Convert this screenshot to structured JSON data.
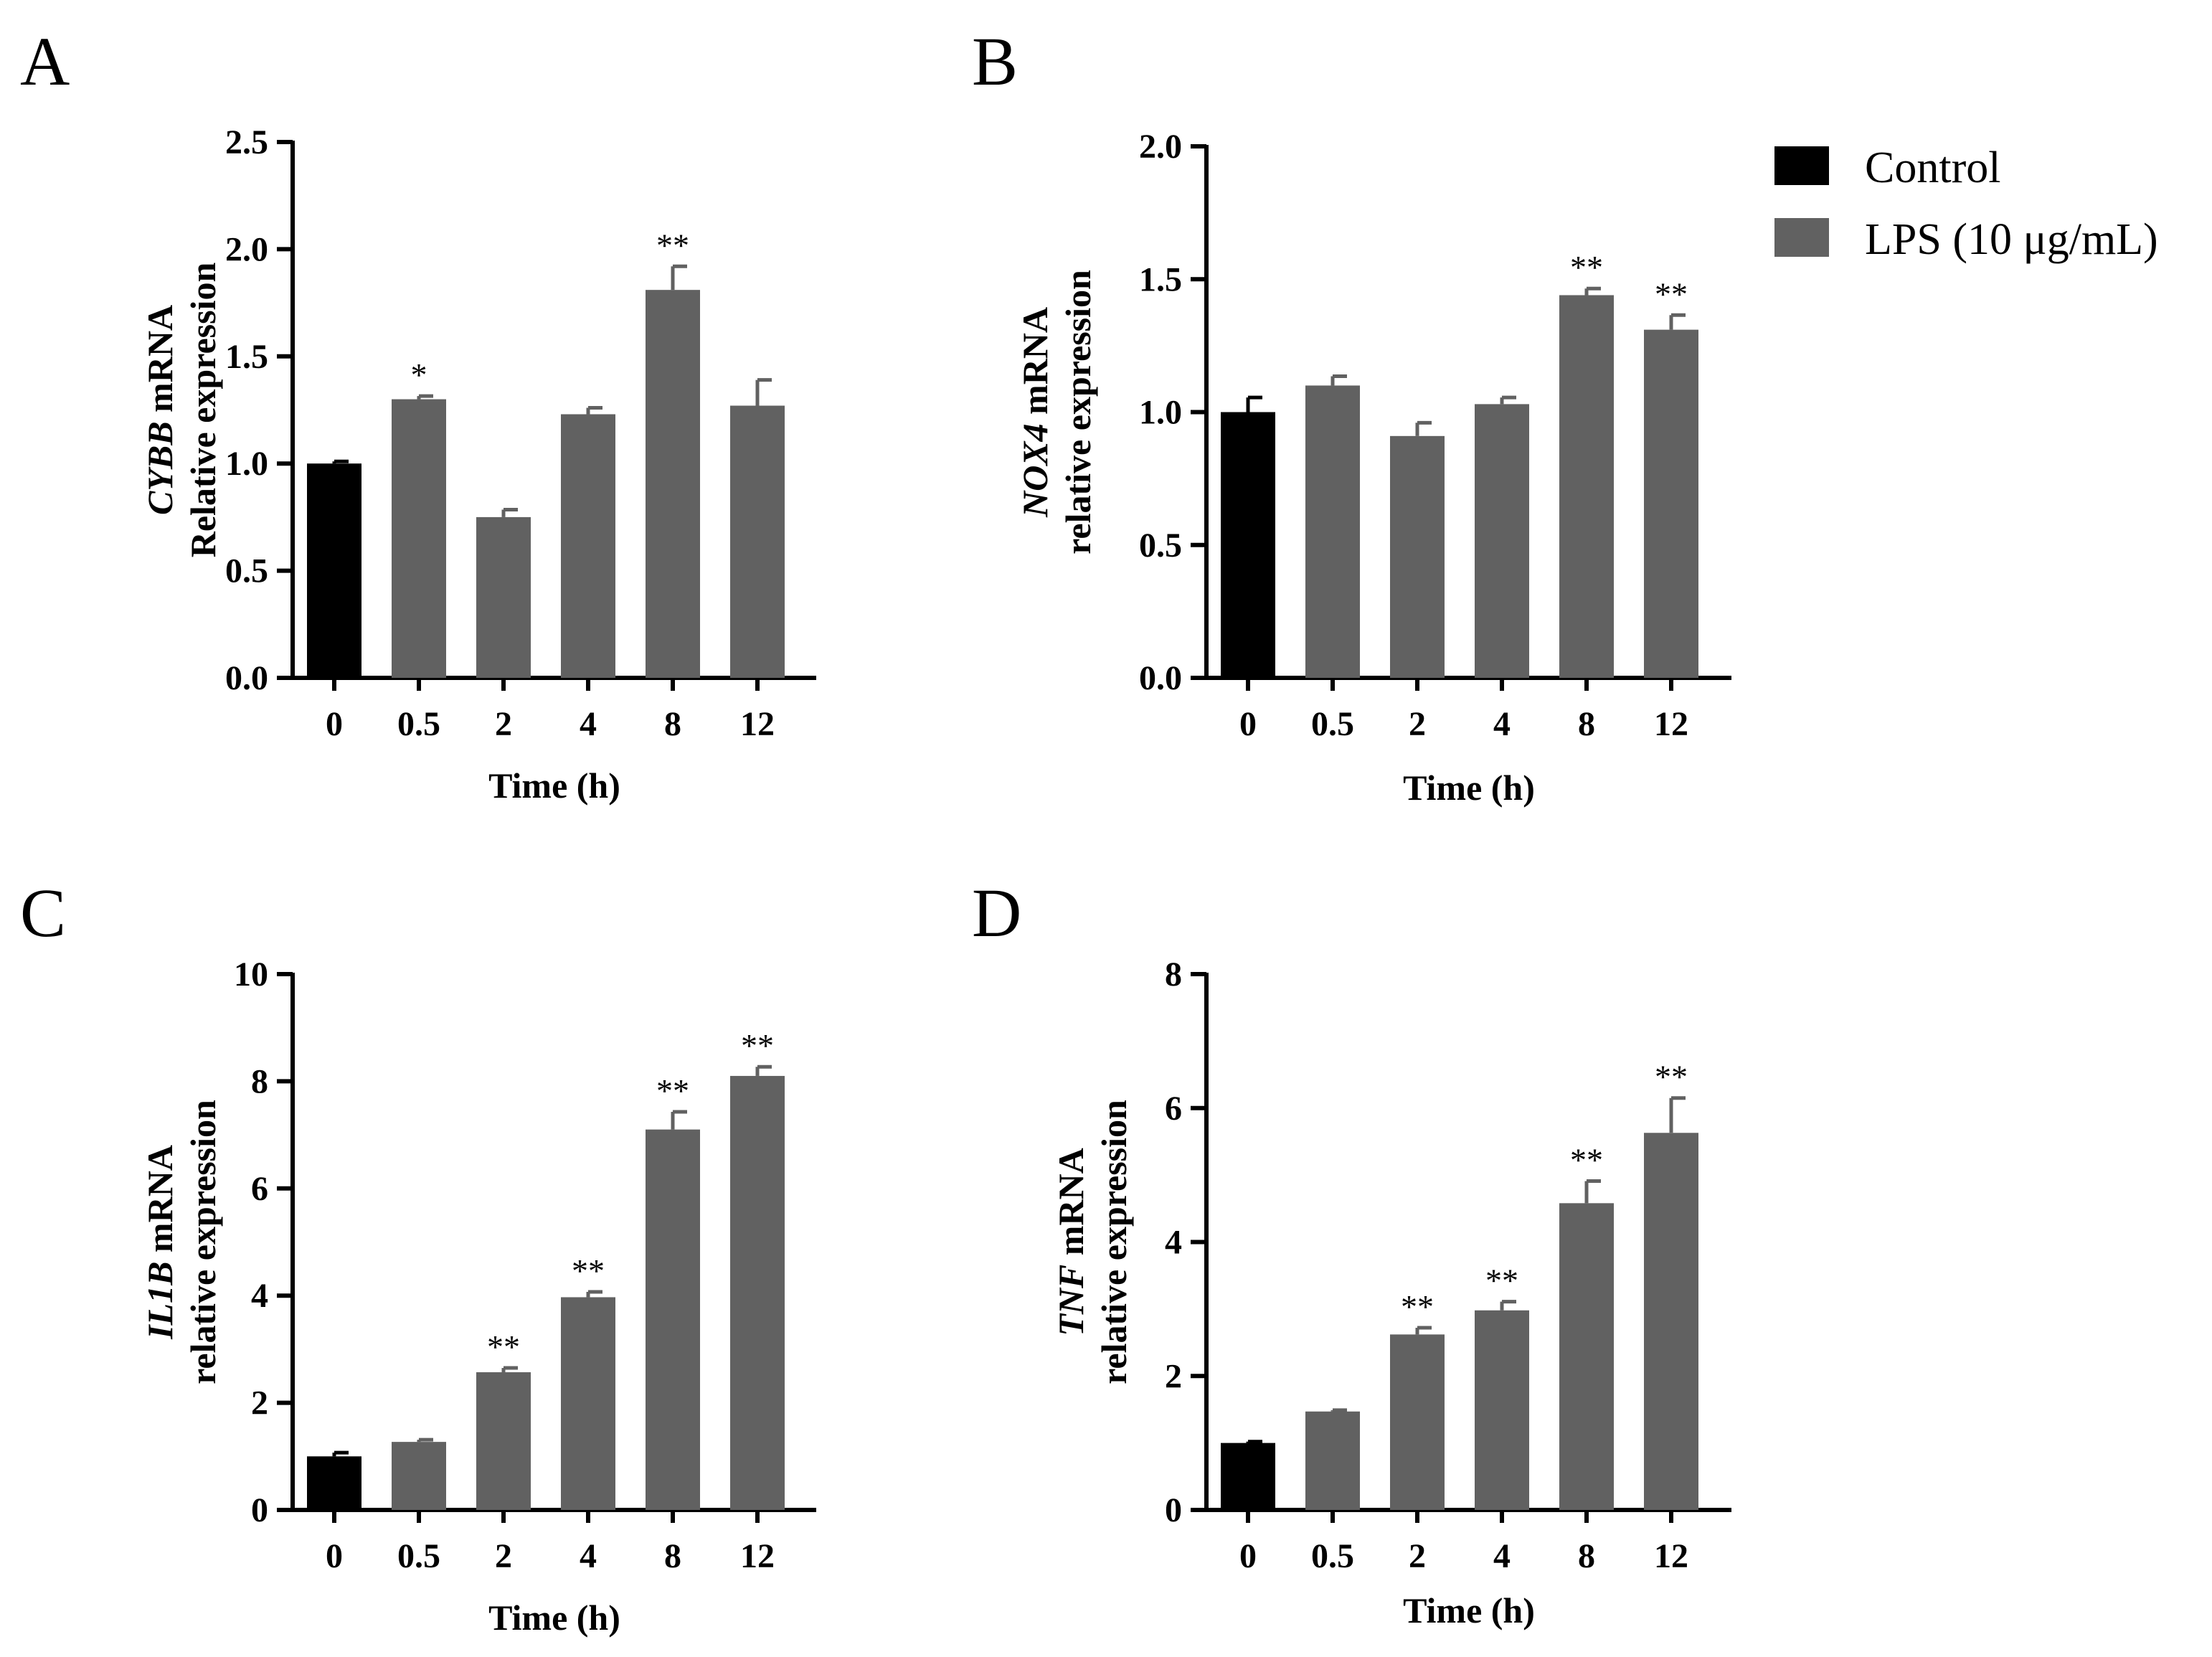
{
  "figure": {
    "legend": {
      "items": [
        {
          "label": "Control",
          "color": "#000000"
        },
        {
          "label": "LPS (10 μg/mL)",
          "color": "#616161"
        }
      ]
    }
  },
  "chart_data": [
    {
      "panel": "A",
      "type": "bar",
      "categories": [
        "0",
        "0.5",
        "2",
        "4",
        "8",
        "12"
      ],
      "xlabel": "Time (h)",
      "ylabel_gene": "CYBB",
      "ylabel_rest": " mRNA",
      "ylabel_line2": "Relative expression",
      "ylim": [
        0,
        2.5
      ],
      "yticks": [
        0,
        0.5,
        1,
        1.5,
        2,
        2.5
      ],
      "ytick_labels": [
        "0.0",
        "0.5",
        "1.0",
        "1.5",
        "2.0",
        "2.5"
      ],
      "values": [
        1.0,
        1.3,
        0.75,
        1.23,
        1.81,
        1.27
      ],
      "errors": [
        0.01,
        0.015,
        0.035,
        0.03,
        0.11,
        0.12
      ],
      "groups": [
        "Control",
        "LPS",
        "LPS",
        "LPS",
        "LPS",
        "LPS"
      ],
      "significance": [
        "",
        "*",
        "",
        "",
        "**",
        ""
      ]
    },
    {
      "panel": "B",
      "type": "bar",
      "categories": [
        "0",
        "0.5",
        "2",
        "4",
        "8",
        "12"
      ],
      "xlabel": "Time (h)",
      "ylabel_gene": "NOX4",
      "ylabel_rest": " mRNA",
      "ylabel_line2": "relative expression",
      "ylim": [
        0,
        2.0
      ],
      "yticks": [
        0,
        0.5,
        1,
        1.5,
        2
      ],
      "ytick_labels": [
        "0.0",
        "0.5",
        "1.0",
        "1.5",
        "2.0"
      ],
      "values": [
        1.0,
        1.1,
        0.91,
        1.03,
        1.44,
        1.31
      ],
      "errors": [
        0.055,
        0.035,
        0.05,
        0.025,
        0.025,
        0.055
      ],
      "groups": [
        "Control",
        "LPS",
        "LPS",
        "LPS",
        "LPS",
        "LPS"
      ],
      "significance": [
        "",
        "",
        "",
        "",
        "**",
        "**"
      ]
    },
    {
      "panel": "C",
      "type": "bar",
      "categories": [
        "0",
        "0.5",
        "2",
        "4",
        "8",
        "12"
      ],
      "xlabel": "Time (h)",
      "ylabel_gene": "IL1B",
      "ylabel_rest": " mRNA",
      "ylabel_line2": "relative expression",
      "ylim": [
        0,
        10
      ],
      "yticks": [
        0,
        2,
        4,
        6,
        8,
        10
      ],
      "ytick_labels": [
        "0",
        "2",
        "4",
        "6",
        "8",
        "10"
      ],
      "values": [
        1.0,
        1.27,
        2.57,
        3.97,
        7.1,
        8.1
      ],
      "errors": [
        0.07,
        0.04,
        0.08,
        0.1,
        0.33,
        0.17
      ],
      "groups": [
        "Control",
        "LPS",
        "LPS",
        "LPS",
        "LPS",
        "LPS"
      ],
      "significance": [
        "",
        "",
        "**",
        "**",
        "**",
        "**"
      ]
    },
    {
      "panel": "D",
      "type": "bar",
      "categories": [
        "0",
        "0.5",
        "2",
        "4",
        "8",
        "12"
      ],
      "xlabel": "Time (h)",
      "ylabel_gene": "TNF",
      "ylabel_rest": " mRNA",
      "ylabel_line2": "relative expression",
      "ylim": [
        0,
        8
      ],
      "yticks": [
        0,
        2,
        4,
        6,
        8
      ],
      "ytick_labels": [
        "0",
        "2",
        "4",
        "6",
        "8"
      ],
      "values": [
        1.0,
        1.47,
        2.62,
        2.98,
        4.58,
        5.63
      ],
      "errors": [
        0.02,
        0.02,
        0.1,
        0.13,
        0.33,
        0.52
      ],
      "groups": [
        "Control",
        "LPS",
        "LPS",
        "LPS",
        "LPS",
        "LPS"
      ],
      "significance": [
        "",
        "",
        "**",
        "**",
        "**",
        "**"
      ]
    }
  ]
}
